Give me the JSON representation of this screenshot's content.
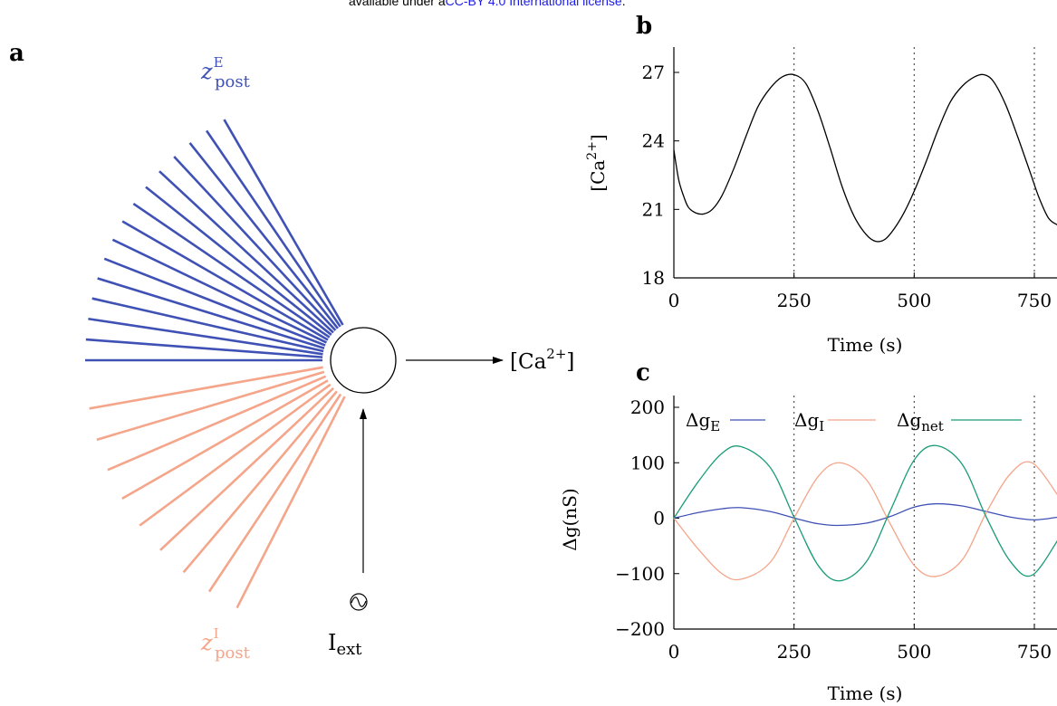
{
  "banner": {
    "prefix": "available under a",
    "link": "CC-BY 4.0 International license",
    "suffix": "."
  },
  "panel_a": {
    "label": "a",
    "excitatory_label": {
      "base": "z",
      "sup": "E",
      "sub": "post"
    },
    "inhibitory_label": {
      "base": "z",
      "sup": "I",
      "sub": "post"
    },
    "output_label": {
      "open": "[Ca",
      "sup": "2+",
      "close": "]"
    },
    "input_label": {
      "base": "I",
      "sub": "ext"
    },
    "colors": {
      "excitatory": "#3f51b5",
      "inhibitory": "#f4a58a",
      "neuron": "#000000"
    }
  },
  "chart_data": [
    {
      "panel_label": "b",
      "type": "line",
      "xlabel": "Time (s)",
      "ylabel": {
        "open": "[Ca",
        "sup": "2+",
        "close": "]"
      },
      "xlim": [
        0,
        800
      ],
      "ylim": [
        18,
        28
      ],
      "xticks": [
        "0",
        "250",
        "500",
        "750"
      ],
      "yticks": [
        "18",
        "21",
        "24",
        "27"
      ],
      "vlines": [
        250,
        500,
        750
      ],
      "grid": false,
      "series": [
        {
          "color": "#000000",
          "x": [
            0,
            10,
            20,
            30,
            45,
            62,
            80,
            100,
            125,
            150,
            175,
            200,
            225,
            250,
            275,
            300,
            325,
            350,
            375,
            400,
            420,
            440,
            460,
            480,
            500,
            525,
            550,
            575,
            600,
            625,
            645,
            665,
            690,
            715,
            740,
            760,
            780,
            800
          ],
          "y": [
            23.6,
            22.3,
            21.6,
            21.1,
            20.85,
            20.8,
            21.0,
            21.6,
            22.8,
            24.2,
            25.5,
            26.3,
            26.8,
            26.9,
            26.5,
            25.3,
            23.7,
            22.0,
            20.7,
            19.9,
            19.6,
            19.7,
            20.2,
            20.9,
            21.8,
            23.1,
            24.5,
            25.7,
            26.4,
            26.8,
            26.9,
            26.6,
            25.6,
            24.2,
            22.7,
            21.5,
            20.6,
            20.3
          ]
        }
      ]
    },
    {
      "panel_label": "c",
      "type": "line",
      "xlabel": "Time (s)",
      "ylabel": {
        "text": "Δg(nS)"
      },
      "xlim": [
        0,
        800
      ],
      "ylim": [
        -200,
        200
      ],
      "xticks": [
        "0",
        "250",
        "500",
        "750"
      ],
      "yticks": [
        "−200",
        "−100",
        "0",
        "100",
        "200"
      ],
      "ytick_values": [
        -200,
        -100,
        0,
        100,
        200
      ],
      "vlines": [
        250,
        500,
        750
      ],
      "grid": false,
      "legend_position": "top",
      "series": [
        {
          "name": {
            "base": "Δg",
            "sub": "E"
          },
          "color": "#3f51b5",
          "x": [
            0,
            50,
            100,
            140,
            200,
            260,
            300,
            340,
            400,
            450,
            500,
            545,
            600,
            650,
            700,
            750,
            800
          ],
          "y": [
            0,
            10,
            17,
            19,
            12,
            -2,
            -10,
            -13,
            -9,
            3,
            20,
            26,
            22,
            12,
            2,
            -3,
            2
          ]
        },
        {
          "name": {
            "base": "Δg",
            "sub": "I"
          },
          "color": "#f4a58a",
          "x": [
            0,
            50,
            100,
            140,
            200,
            250,
            300,
            345,
            400,
            450,
            500,
            545,
            600,
            650,
            700,
            745,
            800
          ],
          "y": [
            0,
            -55,
            -100,
            -110,
            -80,
            0,
            75,
            100,
            70,
            -10,
            -85,
            -105,
            -75,
            10,
            80,
            100,
            40
          ]
        },
        {
          "name": {
            "base": "Δg",
            "sub": "net"
          },
          "color": "#1a9c78",
          "x": [
            0,
            50,
            100,
            140,
            200,
            250,
            300,
            345,
            400,
            450,
            500,
            545,
            600,
            650,
            700,
            745,
            800
          ],
          "y": [
            0,
            65,
            117,
            129,
            92,
            2,
            -85,
            -113,
            -79,
            13,
            105,
            131,
            97,
            2,
            -78,
            -103,
            -38
          ]
        }
      ]
    }
  ]
}
